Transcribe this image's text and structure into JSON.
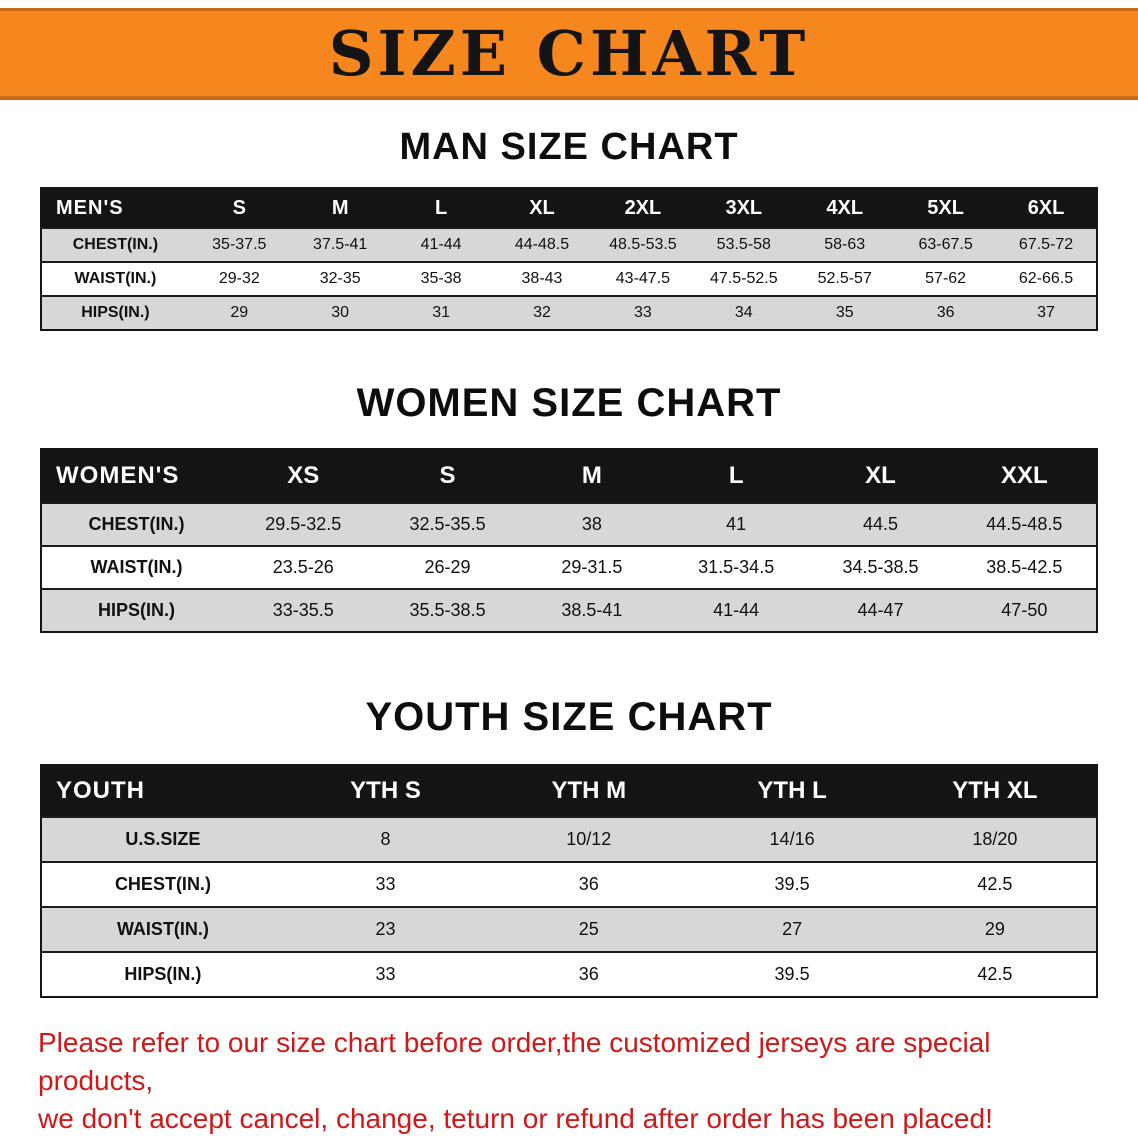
{
  "banner": {
    "title": "SIZE CHART",
    "background_color": "#f6871f",
    "title_color": "#141414"
  },
  "sections": [
    {
      "heading": "MAN SIZE CHART",
      "header": [
        "MEN'S",
        "S",
        "M",
        "L",
        "XL",
        "2XL",
        "3XL",
        "4XL",
        "5XL",
        "6XL"
      ],
      "rows": [
        [
          "CHEST(IN.)",
          "35-37.5",
          "37.5-41",
          "41-44",
          "44-48.5",
          "48.5-53.5",
          "53.5-58",
          "58-63",
          "63-67.5",
          "67.5-72"
        ],
        [
          "WAIST(IN.)",
          "29-32",
          "32-35",
          "35-38",
          "38-43",
          "43-47.5",
          "47.5-52.5",
          "52.5-57",
          "57-62",
          "62-66.5"
        ],
        [
          "HIPS(IN.)",
          "29",
          "30",
          "31",
          "32",
          "33",
          "34",
          "35",
          "36",
          "37"
        ]
      ]
    },
    {
      "heading": "WOMEN SIZE CHART",
      "header": [
        "WOMEN'S",
        "XS",
        "S",
        "M",
        "L",
        "XL",
        "XXL"
      ],
      "rows": [
        [
          "CHEST(IN.)",
          "29.5-32.5",
          "32.5-35.5",
          "38",
          "41",
          "44.5",
          "44.5-48.5"
        ],
        [
          "WAIST(IN.)",
          "23.5-26",
          "26-29",
          "29-31.5",
          "31.5-34.5",
          "34.5-38.5",
          "38.5-42.5"
        ],
        [
          "HIPS(IN.)",
          "33-35.5",
          "35.5-38.5",
          "38.5-41",
          "41-44",
          "44-47",
          "47-50"
        ]
      ]
    },
    {
      "heading": "YOUTH SIZE CHART",
      "header": [
        "YOUTH",
        "YTH S",
        "YTH M",
        "YTH L",
        "YTH XL"
      ],
      "rows": [
        [
          "U.S.SIZE",
          "8",
          "10/12",
          "14/16",
          "18/20"
        ],
        [
          "CHEST(IN.)",
          "33",
          "36",
          "39.5",
          "42.5"
        ],
        [
          "WAIST(IN.)",
          "23",
          "25",
          "27",
          "29"
        ],
        [
          "HIPS(IN.)",
          "33",
          "36",
          "39.5",
          "42.5"
        ]
      ]
    }
  ],
  "footer": {
    "line1": "Please refer to our size chart before order,the customized jerseys are special products,",
    "line2": "we don't accept cancel, change, teturn or refund after order has been placed!",
    "text_color": "#d01818"
  }
}
